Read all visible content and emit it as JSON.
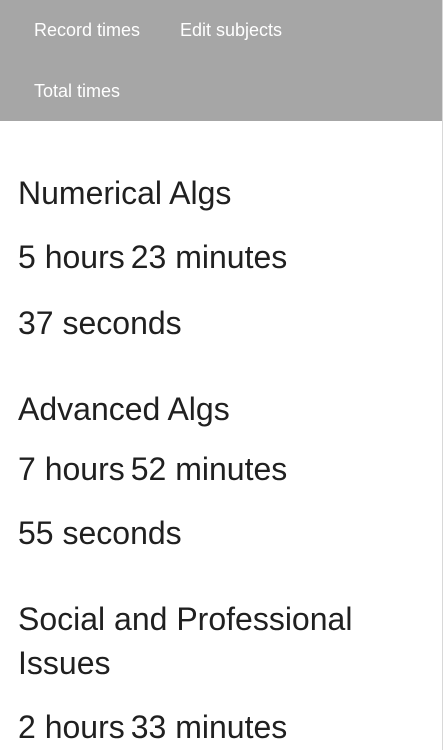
{
  "nav": {
    "items": [
      {
        "label": "Record times"
      },
      {
        "label": "Edit subjects"
      },
      {
        "label": "Total times"
      }
    ]
  },
  "subjects": [
    {
      "name": "Numerical Algs",
      "hours": "5 hours",
      "minutes": "23 minutes",
      "seconds": "37 seconds"
    },
    {
      "name": "Advanced Algs",
      "hours": "7 hours",
      "minutes": "52 minutes",
      "seconds": "55 seconds"
    },
    {
      "name": "Social and Professional Issues",
      "hours": "2 hours",
      "minutes": "33 minutes"
    }
  ],
  "colors": {
    "nav_background": "#a6a6a6",
    "nav_text": "#ffffff",
    "body_text": "#202020"
  }
}
